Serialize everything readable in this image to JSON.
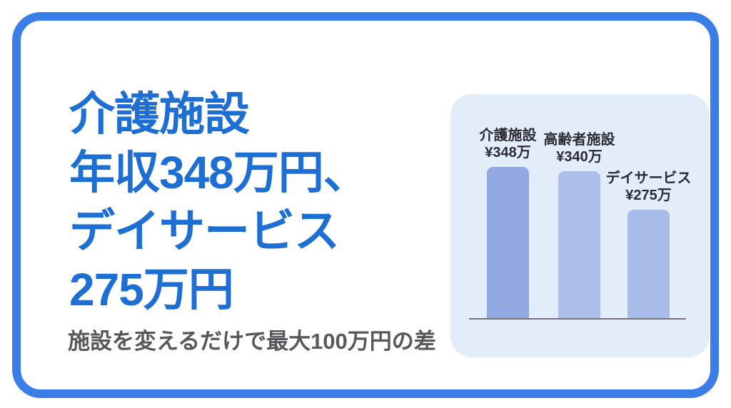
{
  "page": {
    "background_color": "#FFFFFF",
    "frame_border_color": "#3A7DE8"
  },
  "headline": {
    "lines": [
      "介護施設",
      "年収348万円、",
      "デイサービス",
      "275万円"
    ],
    "color": "#1E6FD4"
  },
  "subtitle": {
    "text": "施設を変えるだけで最大100万円の差",
    "color": "#57575C"
  },
  "chart_data": {
    "type": "bar",
    "title": "",
    "categories": [
      "介護施設",
      "高齢者施設",
      "デイサービス"
    ],
    "values": [
      348,
      340,
      275
    ],
    "value_labels": [
      "¥348万",
      "¥340万",
      "¥275万"
    ],
    "unit": "万",
    "bar_colors": [
      "#92A8E1",
      "#ACBEE9",
      "#A9BBE8"
    ],
    "panel_background": "#E3EDFA",
    "baseline_color": "#73737B",
    "label_color": "#2B2B33",
    "ylim": [
      90,
      350
    ],
    "grid": false,
    "legend_position": "none"
  }
}
